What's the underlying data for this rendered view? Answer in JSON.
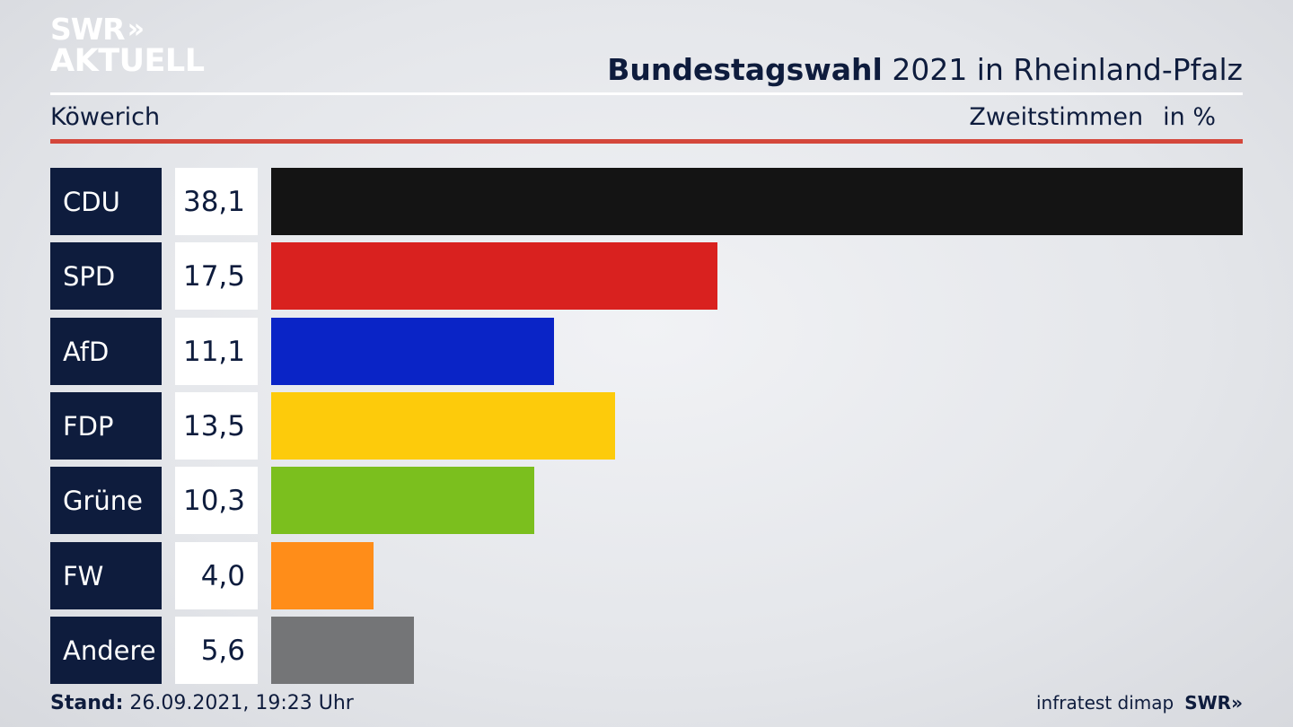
{
  "logo": {
    "line1": "SWR",
    "chevrons": "»",
    "line2": "AKTUELL"
  },
  "header": {
    "title_bold": "Bundestagswahl",
    "title_rest": " 2021 in Rheinland-Pfalz",
    "place": "Köwerich",
    "measure": "Zweitstimmen",
    "unit": "in %"
  },
  "chart_data": {
    "type": "bar",
    "orientation": "horizontal",
    "categories": [
      "CDU",
      "SPD",
      "AfD",
      "FDP",
      "Grüne",
      "FW",
      "Andere"
    ],
    "values": [
      38.1,
      17.5,
      11.1,
      13.5,
      10.3,
      4.0,
      5.6
    ],
    "value_labels": [
      "38,1",
      "17,5",
      "11,1",
      "13,5",
      "10,3",
      "4,0",
      "5,6"
    ],
    "colors": [
      "#141414",
      "#d9211f",
      "#0a24c6",
      "#fdcb0b",
      "#7bbf1e",
      "#ff8d19",
      "#747577"
    ],
    "xlim": [
      0,
      38.1
    ],
    "grid": false,
    "legend": "none"
  },
  "footer": {
    "stand_label": "Stand:",
    "stand_value": " 26.09.2021, 19:23 Uhr",
    "source": "infratest dimap",
    "brand": "SWR»"
  }
}
